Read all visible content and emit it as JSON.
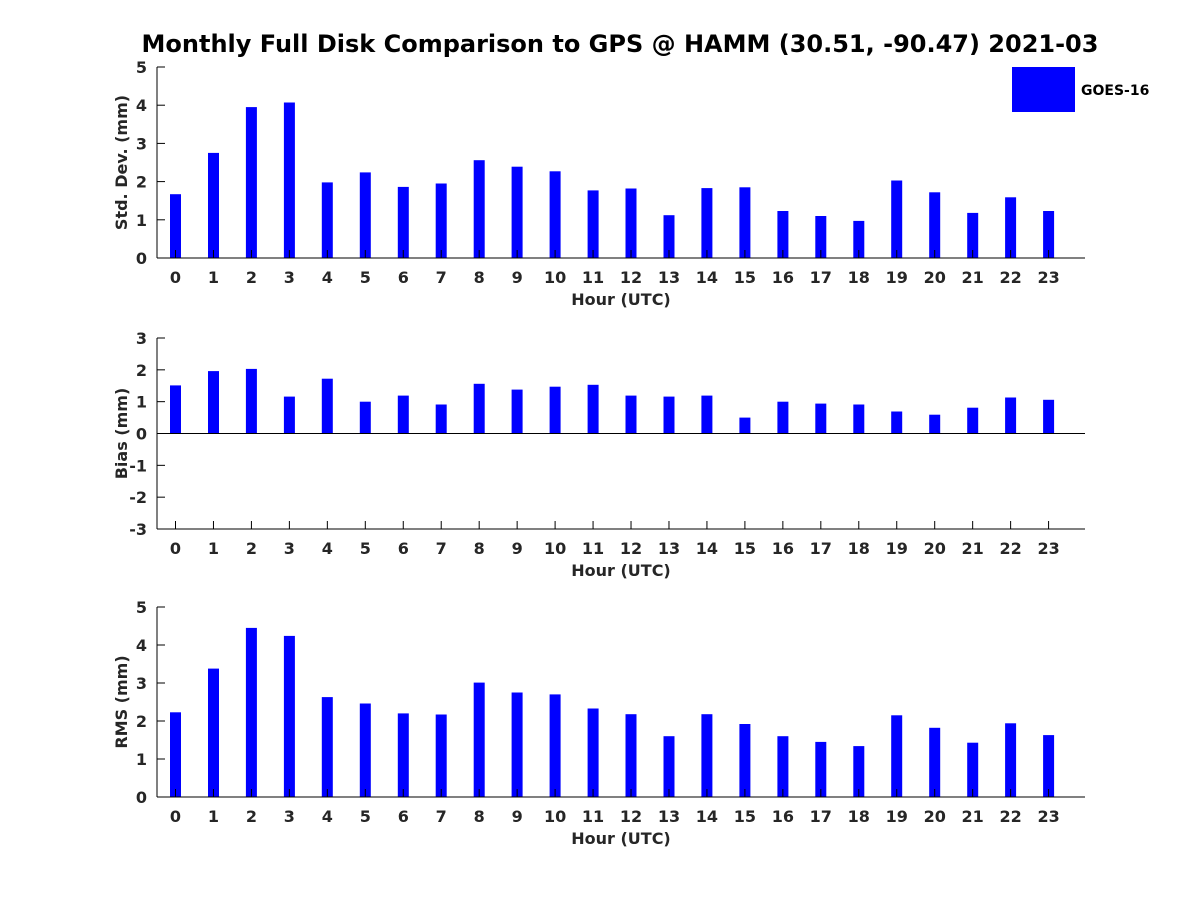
{
  "chart_data": [
    {
      "type": "bar",
      "title": "Monthly Full Disk Comparison to GPS @ HAMM (30.51, -90.47) 2021-03",
      "xlabel": "Hour (UTC)",
      "ylabel": "Std. Dev. (mm)",
      "categories": [
        "0",
        "1",
        "2",
        "3",
        "4",
        "5",
        "6",
        "7",
        "8",
        "9",
        "10",
        "11",
        "12",
        "13",
        "14",
        "15",
        "16",
        "17",
        "18",
        "19",
        "20",
        "21",
        "22",
        "23"
      ],
      "series": [
        {
          "name": "GOES-16",
          "color": "#0000ff",
          "values": [
            1.67,
            2.75,
            3.95,
            4.07,
            1.98,
            2.24,
            1.86,
            1.95,
            2.56,
            2.39,
            2.27,
            1.77,
            1.82,
            1.12,
            1.83,
            1.85,
            1.23,
            1.1,
            0.97,
            2.03,
            1.72,
            1.18,
            1.59,
            1.23
          ]
        }
      ],
      "ylim": [
        0,
        5
      ],
      "yticks": [
        0,
        1,
        2,
        3,
        4,
        5
      ],
      "legend": "top-right",
      "grid": false
    },
    {
      "type": "bar",
      "xlabel": "Hour (UTC)",
      "ylabel": "Bias (mm)",
      "categories": [
        "0",
        "1",
        "2",
        "3",
        "4",
        "5",
        "6",
        "7",
        "8",
        "9",
        "10",
        "11",
        "12",
        "13",
        "14",
        "15",
        "16",
        "17",
        "18",
        "19",
        "20",
        "21",
        "22",
        "23"
      ],
      "series": [
        {
          "color": "#0000ff",
          "values": [
            1.51,
            1.96,
            2.03,
            1.16,
            1.72,
            1.0,
            1.19,
            0.91,
            1.56,
            1.38,
            1.47,
            1.53,
            1.19,
            1.16,
            1.19,
            0.5,
            1.0,
            0.94,
            0.91,
            0.69,
            0.59,
            0.81,
            1.13,
            1.06
          ]
        }
      ],
      "ylim": [
        -3,
        3
      ],
      "yticks": [
        -3,
        -2,
        -1,
        0,
        1,
        2,
        3
      ],
      "grid": false
    },
    {
      "type": "bar",
      "xlabel": "Hour (UTC)",
      "ylabel": "RMS (mm)",
      "categories": [
        "0",
        "1",
        "2",
        "3",
        "4",
        "5",
        "6",
        "7",
        "8",
        "9",
        "10",
        "11",
        "12",
        "13",
        "14",
        "15",
        "16",
        "17",
        "18",
        "19",
        "20",
        "21",
        "22",
        "23"
      ],
      "series": [
        {
          "color": "#0000ff",
          "values": [
            2.23,
            3.38,
            4.45,
            4.24,
            2.63,
            2.46,
            2.2,
            2.17,
            3.01,
            2.75,
            2.7,
            2.33,
            2.18,
            1.6,
            2.18,
            1.92,
            1.6,
            1.45,
            1.34,
            2.15,
            1.82,
            1.43,
            1.94,
            1.63
          ]
        }
      ],
      "ylim": [
        0,
        5
      ],
      "yticks": [
        0,
        1,
        2,
        3,
        4,
        5
      ],
      "grid": false
    }
  ],
  "legend": {
    "label": "GOES-16",
    "color": "#0000ff"
  }
}
